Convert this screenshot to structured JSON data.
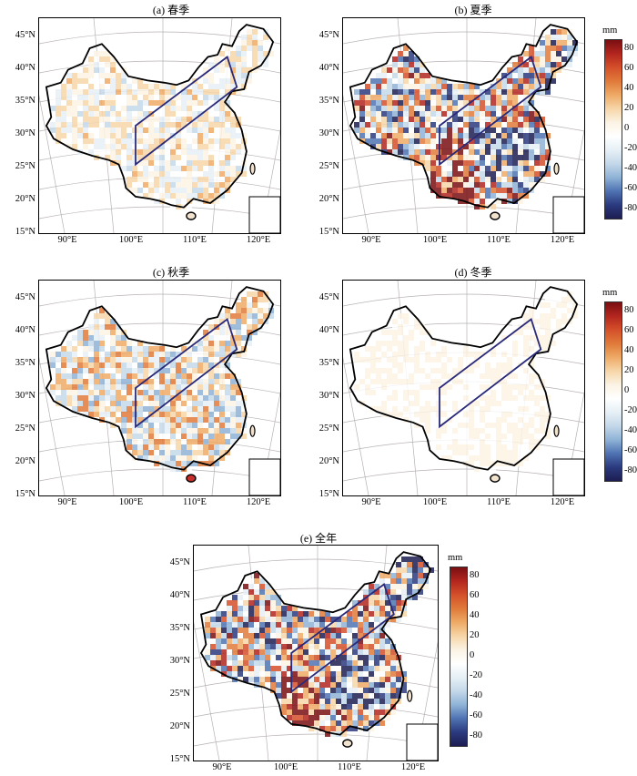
{
  "panels": [
    {
      "id": "spring",
      "title": "(a) 春季"
    },
    {
      "id": "summer",
      "title": "(b) 夏季"
    },
    {
      "id": "autumn",
      "title": "(c) 秋季"
    },
    {
      "id": "winter",
      "title": "(d) 冬季"
    },
    {
      "id": "annual",
      "title": "(e) 全年"
    }
  ],
  "lat_labels": [
    "45°N",
    "40°N",
    "35°N",
    "30°N",
    "25°N",
    "20°N",
    "15°N"
  ],
  "lon_labels": [
    "90°E",
    "100°E",
    "110°E",
    "120°E"
  ],
  "colorbar": {
    "unit": "mm",
    "ticks": [
      "80",
      "60",
      "40",
      "20",
      "0",
      "-20",
      "-40",
      "-60",
      "-80"
    ],
    "colors": [
      "#7a0f12",
      "#b3261e",
      "#d4502a",
      "#e07a3a",
      "#eeaa66",
      "#f6d6a8",
      "#fbf3e4",
      "#ffffff",
      "#e6f0f6",
      "#c4d8e9",
      "#8fb3d6",
      "#4f73b2",
      "#2b3a7e",
      "#1d1d52"
    ]
  },
  "intensity": {
    "spring": "weak",
    "summer": "strong",
    "autumn": "moderate",
    "winter": "very-weak",
    "annual": "strong"
  }
}
